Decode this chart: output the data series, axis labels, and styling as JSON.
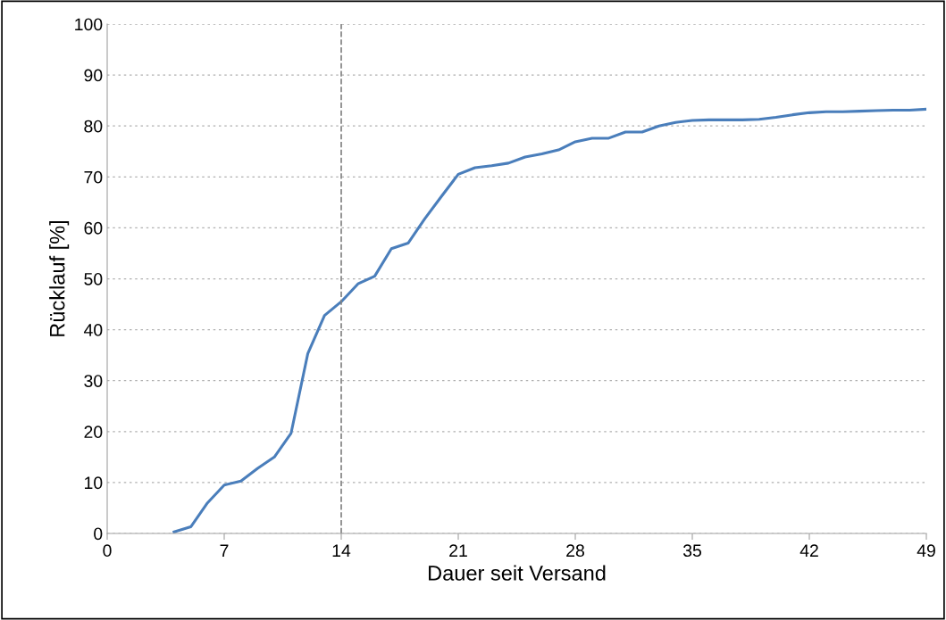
{
  "chart_data": {
    "type": "line",
    "xlabel": "Dauer seit Versand",
    "ylabel": "Rücklauf [%]",
    "x": [
      4,
      5,
      6,
      7,
      8,
      9,
      10,
      11,
      12,
      13,
      14,
      15,
      16,
      17,
      18,
      19,
      20,
      21,
      22,
      23,
      24,
      25,
      26,
      27,
      28,
      29,
      30,
      31,
      32,
      33,
      34,
      35,
      36,
      37,
      38,
      39,
      40,
      41,
      42,
      43,
      44,
      45,
      46,
      47,
      48,
      49
    ],
    "series": [
      {
        "color": "#4a7ebb",
        "values": [
          0.3,
          1.3,
          6,
          9.5,
          10.3,
          12.8,
          15,
          19.7,
          35.3,
          42.8,
          45.5,
          49,
          50.5,
          55.9,
          57,
          61.8,
          66.2,
          70.5,
          71.8,
          72.2,
          72.7,
          73.9,
          74.5,
          75.3,
          76.9,
          77.6,
          77.6,
          78.8,
          78.8,
          80,
          80.7,
          81.1,
          81.2,
          81.2,
          81.2,
          81.3,
          81.7,
          82.2,
          82.6,
          82.8,
          82.8,
          82.9,
          83,
          83.1,
          83.1,
          83.3
        ]
      }
    ],
    "xlim": [
      0,
      49
    ],
    "xticks": [
      0,
      7,
      14,
      21,
      28,
      35,
      42,
      49
    ],
    "ylim": [
      0,
      100
    ],
    "yticks": [
      0,
      10,
      20,
      30,
      40,
      50,
      60,
      70,
      80,
      90,
      100
    ],
    "grid": "y",
    "legend": false,
    "marker": "none",
    "line_style": "solid",
    "ref_lines": [
      {
        "axis": "x",
        "value": 14,
        "color": "#808080",
        "line_style": "dashed"
      }
    ]
  }
}
